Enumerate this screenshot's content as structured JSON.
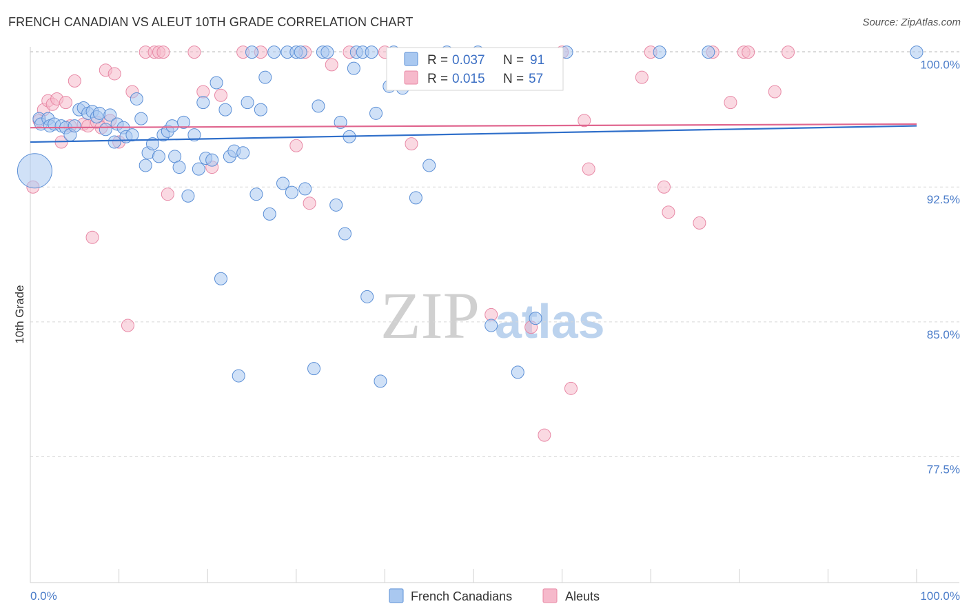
{
  "title": "FRENCH CANADIAN VS ALEUT 10TH GRADE CORRELATION CHART",
  "source": "Source: ZipAtlas.com",
  "watermark": {
    "zip": "ZIP",
    "atlas": "atlas"
  },
  "colors": {
    "blue_fill": "#a9c8f0",
    "blue_stroke": "#5b8fd6",
    "blue_line": "#2f6fca",
    "pink_fill": "#f6b9cb",
    "pink_stroke": "#e889a6",
    "pink_line": "#e0668f",
    "grid": "#d8d8d8",
    "axis_label": "#4a7cc9"
  },
  "legend": [
    {
      "r_label": "R =",
      "r_value": "0.037",
      "n_label": "N =",
      "n_value": "91"
    },
    {
      "r_label": "R =",
      "r_value": "0.015",
      "n_label": "N =",
      "n_value": "57"
    }
  ],
  "bottom_legend": [
    "French Canadians",
    "Aleuts"
  ],
  "chart_data": {
    "type": "scatter",
    "title": "FRENCH CANADIAN VS ALEUT 10TH GRADE CORRELATION CHART",
    "xlabel": "",
    "ylabel": "10th Grade",
    "xlim": [
      0,
      100
    ],
    "ylim": [
      70.5,
      100.6
    ],
    "x_tick_labels": [
      "0.0%",
      "100.0%"
    ],
    "y_ticks": [
      77.5,
      85.0,
      92.5,
      100.0
    ],
    "y_tick_labels": [
      "77.5%",
      "85.0%",
      "92.5%",
      "100.0%"
    ],
    "series": [
      {
        "name": "French Canadians",
        "r": 0.037,
        "n": 91,
        "trend": {
          "y_at_0": 95.0,
          "y_at_100": 95.9
        },
        "points": [
          [
            0.5,
            93.4,
            3
          ],
          [
            1.0,
            96.3,
            1
          ],
          [
            1.2,
            96.0,
            1
          ],
          [
            2.0,
            96.3,
            1
          ],
          [
            2.2,
            95.9,
            1
          ],
          [
            2.7,
            96.0,
            1
          ],
          [
            3.5,
            95.9,
            1
          ],
          [
            4.0,
            95.8,
            1
          ],
          [
            4.5,
            95.4,
            1
          ],
          [
            5.0,
            95.9,
            1
          ],
          [
            5.5,
            96.8,
            1
          ],
          [
            6.0,
            96.9,
            1
          ],
          [
            6.5,
            96.6,
            1
          ],
          [
            7.0,
            96.7,
            1
          ],
          [
            7.5,
            96.4,
            1
          ],
          [
            7.8,
            96.6,
            1
          ],
          [
            8.5,
            95.7,
            1
          ],
          [
            9.0,
            96.5,
            1
          ],
          [
            9.5,
            95.0,
            1
          ],
          [
            9.8,
            96.0,
            1
          ],
          [
            10.5,
            95.8,
            1
          ],
          [
            10.8,
            95.3,
            1
          ],
          [
            11.5,
            95.4,
            1
          ],
          [
            12.0,
            97.4,
            1
          ],
          [
            12.5,
            96.3,
            1
          ],
          [
            13.0,
            93.7,
            1
          ],
          [
            13.3,
            94.4,
            1
          ],
          [
            13.8,
            94.9,
            1
          ],
          [
            14.5,
            94.2,
            1
          ],
          [
            15.0,
            95.4,
            1
          ],
          [
            15.5,
            95.6,
            1
          ],
          [
            16.0,
            95.9,
            1
          ],
          [
            16.3,
            94.2,
            1
          ],
          [
            16.8,
            93.6,
            1
          ],
          [
            17.3,
            96.1,
            1
          ],
          [
            17.8,
            92.0,
            1
          ],
          [
            18.5,
            95.4,
            1
          ],
          [
            19.0,
            93.5,
            1
          ],
          [
            19.5,
            97.2,
            1
          ],
          [
            19.8,
            94.1,
            1
          ],
          [
            20.5,
            94.0,
            1
          ],
          [
            21.0,
            98.3,
            1
          ],
          [
            21.5,
            87.4,
            1
          ],
          [
            22.0,
            96.8,
            1
          ],
          [
            22.5,
            94.2,
            1
          ],
          [
            23.0,
            94.5,
            1
          ],
          [
            23.5,
            82.0,
            1
          ],
          [
            24.0,
            94.4,
            1
          ],
          [
            24.5,
            97.2,
            1
          ],
          [
            25.0,
            100.0,
            1
          ],
          [
            25.5,
            92.1,
            1
          ],
          [
            26.0,
            96.8,
            1
          ],
          [
            26.5,
            98.6,
            1
          ],
          [
            27.0,
            91.0,
            1
          ],
          [
            27.5,
            100.0,
            1
          ],
          [
            28.5,
            92.7,
            1
          ],
          [
            29.0,
            100.0,
            1
          ],
          [
            29.5,
            92.2,
            1
          ],
          [
            30.0,
            100.0,
            1
          ],
          [
            30.5,
            100.0,
            1
          ],
          [
            31.0,
            92.4,
            1
          ],
          [
            32.0,
            82.4,
            1
          ],
          [
            32.5,
            97.0,
            1
          ],
          [
            33.0,
            100.0,
            1
          ],
          [
            33.5,
            100.0,
            1
          ],
          [
            34.5,
            91.5,
            1
          ],
          [
            35.0,
            96.1,
            1
          ],
          [
            35.5,
            89.9,
            1
          ],
          [
            36.0,
            95.3,
            1
          ],
          [
            36.5,
            99.1,
            1
          ],
          [
            36.8,
            100.0,
            1
          ],
          [
            37.5,
            100.0,
            1
          ],
          [
            38.0,
            86.4,
            1
          ],
          [
            38.5,
            100.0,
            1
          ],
          [
            39.0,
            96.6,
            1
          ],
          [
            39.5,
            81.7,
            1
          ],
          [
            40.5,
            98.1,
            1
          ],
          [
            41.0,
            100.0,
            1
          ],
          [
            42.0,
            98.0,
            1
          ],
          [
            43.5,
            91.9,
            1
          ],
          [
            45.0,
            93.7,
            1
          ],
          [
            47.0,
            100.0,
            1
          ],
          [
            50.5,
            100.0,
            1
          ],
          [
            52.0,
            84.8,
            1
          ],
          [
            55.0,
            82.2,
            1
          ],
          [
            57.0,
            85.2,
            1
          ],
          [
            60.5,
            100.0,
            1
          ],
          [
            71.0,
            100.0,
            1
          ],
          [
            76.5,
            100.0,
            1
          ],
          [
            100.0,
            100.0,
            1
          ]
        ]
      },
      {
        "name": "Aleuts",
        "r": 0.015,
        "n": 57,
        "trend": {
          "y_at_0": 95.8,
          "y_at_100": 96.0
        },
        "points": [
          [
            0.3,
            92.5,
            1
          ],
          [
            1.0,
            96.2,
            1
          ],
          [
            1.5,
            96.8,
            1
          ],
          [
            2.0,
            97.3,
            1
          ],
          [
            2.5,
            97.1,
            1
          ],
          [
            3.0,
            97.4,
            1
          ],
          [
            3.5,
            95.0,
            1
          ],
          [
            4.0,
            97.2,
            1
          ],
          [
            4.5,
            95.9,
            1
          ],
          [
            5.0,
            98.4,
            1
          ],
          [
            6.0,
            96.0,
            1
          ],
          [
            6.5,
            95.9,
            1
          ],
          [
            7.0,
            89.7,
            1
          ],
          [
            7.5,
            96.1,
            1
          ],
          [
            8.0,
            95.8,
            1
          ],
          [
            8.5,
            99.0,
            1
          ],
          [
            9.0,
            96.2,
            1
          ],
          [
            9.5,
            98.8,
            1
          ],
          [
            10.0,
            95.0,
            1
          ],
          [
            11.0,
            84.8,
            1
          ],
          [
            11.5,
            97.8,
            1
          ],
          [
            13.0,
            100.0,
            1
          ],
          [
            14.0,
            100.0,
            1
          ],
          [
            14.5,
            100.0,
            1
          ],
          [
            15.0,
            100.0,
            1
          ],
          [
            15.5,
            92.1,
            1
          ],
          [
            18.5,
            100.0,
            1
          ],
          [
            19.5,
            97.8,
            1
          ],
          [
            20.5,
            93.6,
            1
          ],
          [
            21.5,
            97.6,
            1
          ],
          [
            24.0,
            100.0,
            1
          ],
          [
            26.0,
            100.0,
            1
          ],
          [
            30.0,
            94.8,
            1
          ],
          [
            31.0,
            100.0,
            1
          ],
          [
            31.5,
            91.6,
            1
          ],
          [
            34.0,
            99.3,
            1
          ],
          [
            36.0,
            100.0,
            1
          ],
          [
            40.0,
            100.0,
            1
          ],
          [
            43.0,
            94.9,
            1
          ],
          [
            52.0,
            85.4,
            1
          ],
          [
            56.5,
            84.7,
            1
          ],
          [
            58.0,
            78.7,
            1
          ],
          [
            60.0,
            100.0,
            1
          ],
          [
            61.0,
            81.3,
            1
          ],
          [
            62.5,
            96.2,
            1
          ],
          [
            63.0,
            93.5,
            1
          ],
          [
            69.0,
            98.6,
            1
          ],
          [
            70.0,
            100.0,
            1
          ],
          [
            71.5,
            92.5,
            1
          ],
          [
            72.0,
            91.1,
            1
          ],
          [
            75.5,
            90.5,
            1
          ],
          [
            77.0,
            100.0,
            1
          ],
          [
            79.0,
            97.2,
            1
          ],
          [
            80.5,
            100.0,
            1
          ],
          [
            81.0,
            100.0,
            1
          ],
          [
            84.0,
            97.8,
            1
          ],
          [
            85.5,
            100.0,
            1
          ]
        ]
      }
    ]
  }
}
